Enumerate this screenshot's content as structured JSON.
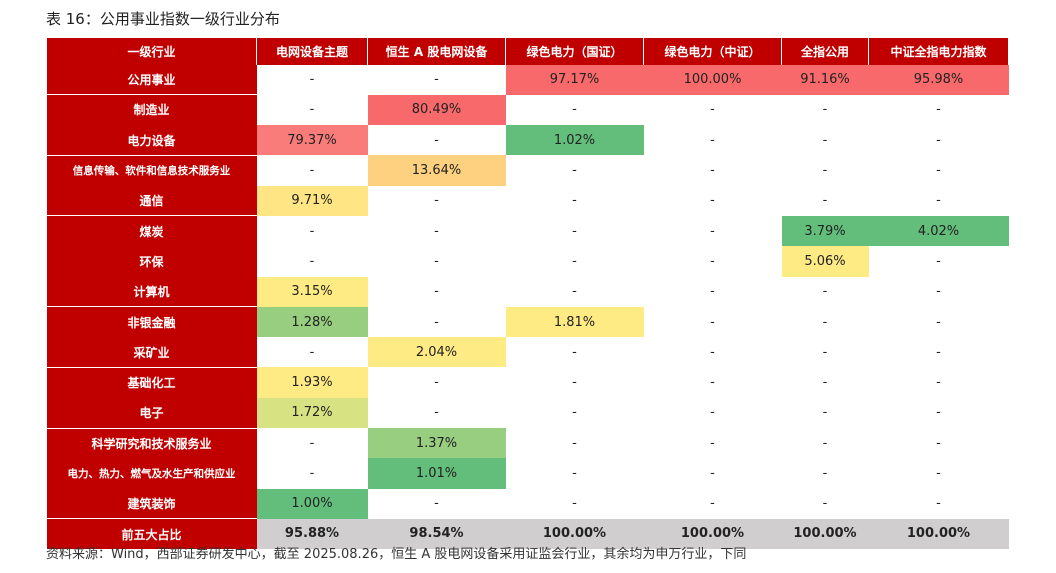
{
  "title": "表 16：公用事业指数一级行业分布",
  "footnote": "资料来源：Wind，西部证券研发中心，截至 2025.08.26，恒生 A 股电网设备采用证监会行业，其余均为申万行业，下同",
  "colors": {
    "header_bg": "#C00000",
    "header_text": "#FFFFFF",
    "summary_bg": "#D0CECE",
    "heat_red": "#F8696B",
    "heat_salmon": "#F97C7B",
    "heat_light_orange": "#FDD17F",
    "heat_yellow": "#FFEB84",
    "heat_pale_yellow": "#F4E783",
    "heat_light_green": "#D7E283",
    "heat_mid_green": "#98CE7F",
    "heat_green": "#63BE7B"
  },
  "table": {
    "columns": [
      "一级行业",
      "电网设备主题",
      "恒生 A 股电网设备",
      "绿色电力（国证）",
      "绿色电力（中证）",
      "全指公用",
      "中证全指电力指数"
    ],
    "rows": [
      {
        "industry": "公用事业",
        "cells": [
          {
            "v": "-",
            "bg": ""
          },
          {
            "v": "-",
            "bg": ""
          },
          {
            "v": "97.17%",
            "bg": "#F8696B"
          },
          {
            "v": "100.00%",
            "bg": "#F8696B"
          },
          {
            "v": "91.16%",
            "bg": "#F8696B"
          },
          {
            "v": "95.98%",
            "bg": "#F8696B"
          }
        ]
      },
      {
        "industry": "制造业",
        "cells": [
          {
            "v": "-",
            "bg": ""
          },
          {
            "v": "80.49%",
            "bg": "#F8696B"
          },
          {
            "v": "-",
            "bg": ""
          },
          {
            "v": "-",
            "bg": ""
          },
          {
            "v": "-",
            "bg": ""
          },
          {
            "v": "-",
            "bg": ""
          }
        ]
      },
      {
        "industry": "电力设备",
        "cells": [
          {
            "v": "79.37%",
            "bg": "#F97C7B"
          },
          {
            "v": "-",
            "bg": ""
          },
          {
            "v": "1.02%",
            "bg": "#63BE7B"
          },
          {
            "v": "-",
            "bg": ""
          },
          {
            "v": "-",
            "bg": ""
          },
          {
            "v": "-",
            "bg": ""
          }
        ]
      },
      {
        "industry": "信息传输、软件和信息技术服务业",
        "small": true,
        "cells": [
          {
            "v": "-",
            "bg": ""
          },
          {
            "v": "13.64%",
            "bg": "#FDD17F"
          },
          {
            "v": "-",
            "bg": ""
          },
          {
            "v": "-",
            "bg": ""
          },
          {
            "v": "-",
            "bg": ""
          },
          {
            "v": "-",
            "bg": ""
          }
        ]
      },
      {
        "industry": "通信",
        "cells": [
          {
            "v": "9.71%",
            "bg": "#FFE583"
          },
          {
            "v": "-",
            "bg": ""
          },
          {
            "v": "-",
            "bg": ""
          },
          {
            "v": "-",
            "bg": ""
          },
          {
            "v": "-",
            "bg": ""
          },
          {
            "v": "-",
            "bg": ""
          }
        ]
      },
      {
        "industry": "煤炭",
        "cells": [
          {
            "v": "-",
            "bg": ""
          },
          {
            "v": "-",
            "bg": ""
          },
          {
            "v": "-",
            "bg": ""
          },
          {
            "v": "-",
            "bg": ""
          },
          {
            "v": "3.79%",
            "bg": "#63BE7B"
          },
          {
            "v": "4.02%",
            "bg": "#63BE7B"
          }
        ]
      },
      {
        "industry": "环保",
        "cells": [
          {
            "v": "-",
            "bg": ""
          },
          {
            "v": "-",
            "bg": ""
          },
          {
            "v": "-",
            "bg": ""
          },
          {
            "v": "-",
            "bg": ""
          },
          {
            "v": "5.06%",
            "bg": "#FFEB84"
          },
          {
            "v": "-",
            "bg": ""
          }
        ]
      },
      {
        "industry": "计算机",
        "cells": [
          {
            "v": "3.15%",
            "bg": "#FFEB84"
          },
          {
            "v": "-",
            "bg": ""
          },
          {
            "v": "-",
            "bg": ""
          },
          {
            "v": "-",
            "bg": ""
          },
          {
            "v": "-",
            "bg": ""
          },
          {
            "v": "-",
            "bg": ""
          }
        ]
      },
      {
        "industry": "非银金融",
        "cells": [
          {
            "v": "1.28%",
            "bg": "#98CE7F"
          },
          {
            "v": "-",
            "bg": ""
          },
          {
            "v": "1.81%",
            "bg": "#FFEB84"
          },
          {
            "v": "-",
            "bg": ""
          },
          {
            "v": "-",
            "bg": ""
          },
          {
            "v": "-",
            "bg": ""
          }
        ]
      },
      {
        "industry": "采矿业",
        "cells": [
          {
            "v": "-",
            "bg": ""
          },
          {
            "v": "2.04%",
            "bg": "#FFEB84"
          },
          {
            "v": "-",
            "bg": ""
          },
          {
            "v": "-",
            "bg": ""
          },
          {
            "v": "-",
            "bg": ""
          },
          {
            "v": "-",
            "bg": ""
          }
        ]
      },
      {
        "industry": "基础化工",
        "cells": [
          {
            "v": "1.93%",
            "bg": "#FFEB84"
          },
          {
            "v": "-",
            "bg": ""
          },
          {
            "v": "-",
            "bg": ""
          },
          {
            "v": "-",
            "bg": ""
          },
          {
            "v": "-",
            "bg": ""
          },
          {
            "v": "-",
            "bg": ""
          }
        ]
      },
      {
        "industry": "电子",
        "cells": [
          {
            "v": "1.72%",
            "bg": "#D7E283"
          },
          {
            "v": "-",
            "bg": ""
          },
          {
            "v": "-",
            "bg": ""
          },
          {
            "v": "-",
            "bg": ""
          },
          {
            "v": "-",
            "bg": ""
          },
          {
            "v": "-",
            "bg": ""
          }
        ]
      },
      {
        "industry": "科学研究和技术服务业",
        "cells": [
          {
            "v": "-",
            "bg": ""
          },
          {
            "v": "1.37%",
            "bg": "#98CE7F"
          },
          {
            "v": "-",
            "bg": ""
          },
          {
            "v": "-",
            "bg": ""
          },
          {
            "v": "-",
            "bg": ""
          },
          {
            "v": "-",
            "bg": ""
          }
        ]
      },
      {
        "industry": "电力、热力、燃气及水生产和供应业",
        "small": true,
        "cells": [
          {
            "v": "-",
            "bg": ""
          },
          {
            "v": "1.01%",
            "bg": "#63BE7B"
          },
          {
            "v": "-",
            "bg": ""
          },
          {
            "v": "-",
            "bg": ""
          },
          {
            "v": "-",
            "bg": ""
          },
          {
            "v": "-",
            "bg": ""
          }
        ]
      },
      {
        "industry": "建筑装饰",
        "cells": [
          {
            "v": "1.00%",
            "bg": "#63BE7B"
          },
          {
            "v": "-",
            "bg": ""
          },
          {
            "v": "-",
            "bg": ""
          },
          {
            "v": "-",
            "bg": ""
          },
          {
            "v": "-",
            "bg": ""
          },
          {
            "v": "-",
            "bg": ""
          }
        ]
      }
    ],
    "summary": {
      "label": "前五大占比",
      "cells": [
        "95.88%",
        "98.54%",
        "100.00%",
        "100.00%",
        "100.00%",
        "100.00%"
      ]
    }
  }
}
